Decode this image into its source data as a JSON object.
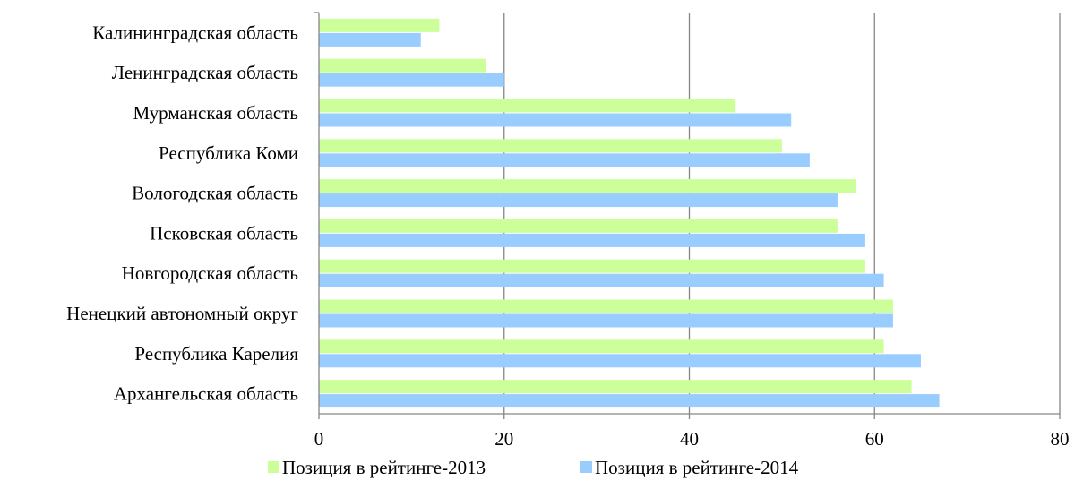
{
  "chart_data": {
    "type": "bar",
    "orientation": "horizontal",
    "categories": [
      "Калининградская область",
      "Ленинградская область",
      "Мурманская область",
      "Республика Коми",
      "Вологодская область",
      "Псковская область",
      "Новгородская область",
      "Ненецкий автономный округ",
      "Республика Карелия",
      "Архангельская область"
    ],
    "series": [
      {
        "name": "Позиция в рейтинге-2013",
        "color": "#ccff99",
        "values": [
          13,
          18,
          45,
          50,
          58,
          56,
          59,
          62,
          61,
          64
        ]
      },
      {
        "name": "Позиция в рейтинге-2014",
        "color": "#99ccff",
        "values": [
          11,
          20,
          51,
          53,
          56,
          59,
          61,
          62,
          65,
          67
        ]
      }
    ],
    "xlim": [
      0,
      80
    ],
    "xticks": [
      "0",
      "20",
      "40",
      "60",
      "80"
    ],
    "grid": "vertical",
    "legend_position": "bottom"
  }
}
